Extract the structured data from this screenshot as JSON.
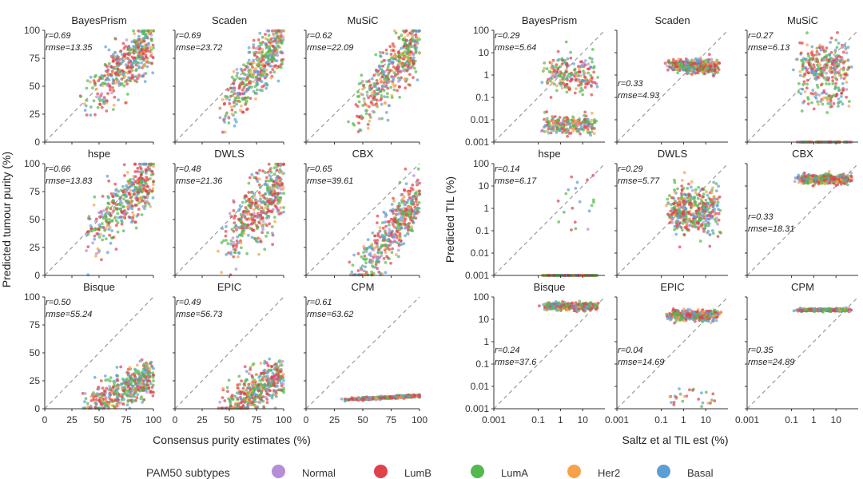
{
  "chart_data": [
    {
      "type": "scatter",
      "scale": "linear",
      "xlabel": "Consensus purity estimates (%)",
      "ylabel": "Predicted tumour purity (%)",
      "xlim": [
        0,
        100
      ],
      "ylim": [
        0,
        100
      ],
      "xticks": [
        "0",
        "25",
        "50",
        "75",
        "100"
      ],
      "yticks": [
        "0",
        "25",
        "50",
        "75",
        "100"
      ],
      "panels": [
        {
          "title": "BayesPrism",
          "r": "r=0.69",
          "rmse": "rmse=13.35",
          "stat_pos": "top",
          "x_range": [
            35,
            98
          ],
          "slope": 0.9,
          "intercept": 2,
          "noise": 12
        },
        {
          "title": "Scaden",
          "r": "r=0.69",
          "rmse": "rmse=23.72",
          "stat_pos": "top",
          "x_range": [
            40,
            98
          ],
          "slope": 1.15,
          "intercept": -22,
          "noise": 12
        },
        {
          "title": "MuSiC",
          "r": "r=0.62",
          "rmse": "rmse=22.09",
          "stat_pos": "top",
          "x_range": [
            40,
            98
          ],
          "slope": 1.15,
          "intercept": -25,
          "noise": 13
        },
        {
          "title": "hspe",
          "r": "r=0.66",
          "rmse": "rmse=13.83",
          "stat_pos": "top",
          "x_range": [
            35,
            98
          ],
          "slope": 0.95,
          "intercept": -5,
          "noise": 12
        },
        {
          "title": "DWLS",
          "r": "r=0.48",
          "rmse": "rmse=21.36",
          "stat_pos": "top",
          "x_range": [
            40,
            98
          ],
          "slope": 0.95,
          "intercept": -12,
          "noise": 15
        },
        {
          "title": "CBX",
          "r": "r=0.65",
          "rmse": "rmse=39.61",
          "stat_pos": "top",
          "x_range": [
            40,
            98
          ],
          "slope": 1.25,
          "intercept": -55,
          "noise": 12
        },
        {
          "title": "Bisque",
          "r": "r=0.50",
          "rmse": "rmse=55.24",
          "stat_pos": "top",
          "x_range": [
            35,
            98
          ],
          "slope": 0.45,
          "intercept": -15,
          "noise": 8
        },
        {
          "title": "EPIC",
          "r": "r=0.49",
          "rmse": "rmse=56.73",
          "stat_pos": "top",
          "x_range": [
            40,
            98
          ],
          "slope": 0.55,
          "intercept": -25,
          "noise": 10
        },
        {
          "title": "CPM",
          "r": "r=0.61",
          "rmse": "rmse=63.62",
          "stat_pos": "top",
          "x_range": [
            35,
            98
          ],
          "slope": 0.05,
          "intercept": 6.5,
          "noise": 0.6
        }
      ]
    },
    {
      "type": "scatter",
      "scale": "log",
      "xlabel": "Saltz et al TIL est (%)",
      "ylabel": "Predicted TIL (%)",
      "xlim": [
        0.001,
        100
      ],
      "ylim": [
        0.001,
        100
      ],
      "xticks": [
        "0.001",
        "0.1",
        "1",
        "10"
      ],
      "yticks": [
        "0.001",
        "0.01",
        "0.1",
        "1",
        "10",
        "100"
      ],
      "panels": [
        {
          "title": "BayesPrism",
          "r": "r=0.29",
          "rmse": "rmse=5.64",
          "stat_pos": "top",
          "pattern": "bimodal",
          "y_levels": [
            1,
            0.006
          ],
          "y_spread": [
            0.45,
            0.2
          ]
        },
        {
          "title": "Scaden",
          "r": "r=0.33",
          "rmse": "rmse=4.93",
          "stat_pos": "middle",
          "pattern": "band",
          "y_center": 2.5,
          "y_spread": 0.15
        },
        {
          "title": "MuSiC",
          "r": "r=0.27",
          "rmse": "rmse=6.13",
          "stat_pos": "top",
          "pattern": "music",
          "y_center": 3,
          "y_spread": 0.5
        },
        {
          "title": "hspe",
          "r": "r=0.14",
          "rmse": "rmse=6.17",
          "stat_pos": "top",
          "pattern": "floor",
          "y_center": 0.001
        },
        {
          "title": "DWLS",
          "r": "r=0.29",
          "rmse": "rmse=5.77",
          "stat_pos": "top",
          "pattern": "cloud",
          "y_center": 0.8,
          "y_spread": 0.55
        },
        {
          "title": "CBX",
          "r": "r=0.33",
          "rmse": "rmse=18.31",
          "stat_pos": "middle",
          "pattern": "band",
          "y_center": 20,
          "y_spread": 0.1
        },
        {
          "title": "Bisque",
          "r": "r=0.24",
          "rmse": "rmse=37.6",
          "stat_pos": "middle",
          "pattern": "band",
          "y_center": 38,
          "y_spread": 0.08
        },
        {
          "title": "EPIC",
          "r": "r=0.04",
          "rmse": "rmse=14.69",
          "stat_pos": "middle",
          "pattern": "epic",
          "y_center": 15,
          "y_spread": 0.12
        },
        {
          "title": "CPM",
          "r": "r=0.35",
          "rmse": "rmse=24.89",
          "stat_pos": "middle",
          "pattern": "band",
          "y_center": 26,
          "y_spread": 0.03
        }
      ]
    }
  ],
  "legend": {
    "title": "PAM50 subtypes",
    "items": [
      {
        "label": "Normal",
        "color": "#b48fd6"
      },
      {
        "label": "LumB",
        "color": "#e0414a"
      },
      {
        "label": "LumA",
        "color": "#55b84d"
      },
      {
        "label": "Her2",
        "color": "#f7a24a"
      },
      {
        "label": "Basal",
        "color": "#5b9fd4"
      }
    ]
  }
}
